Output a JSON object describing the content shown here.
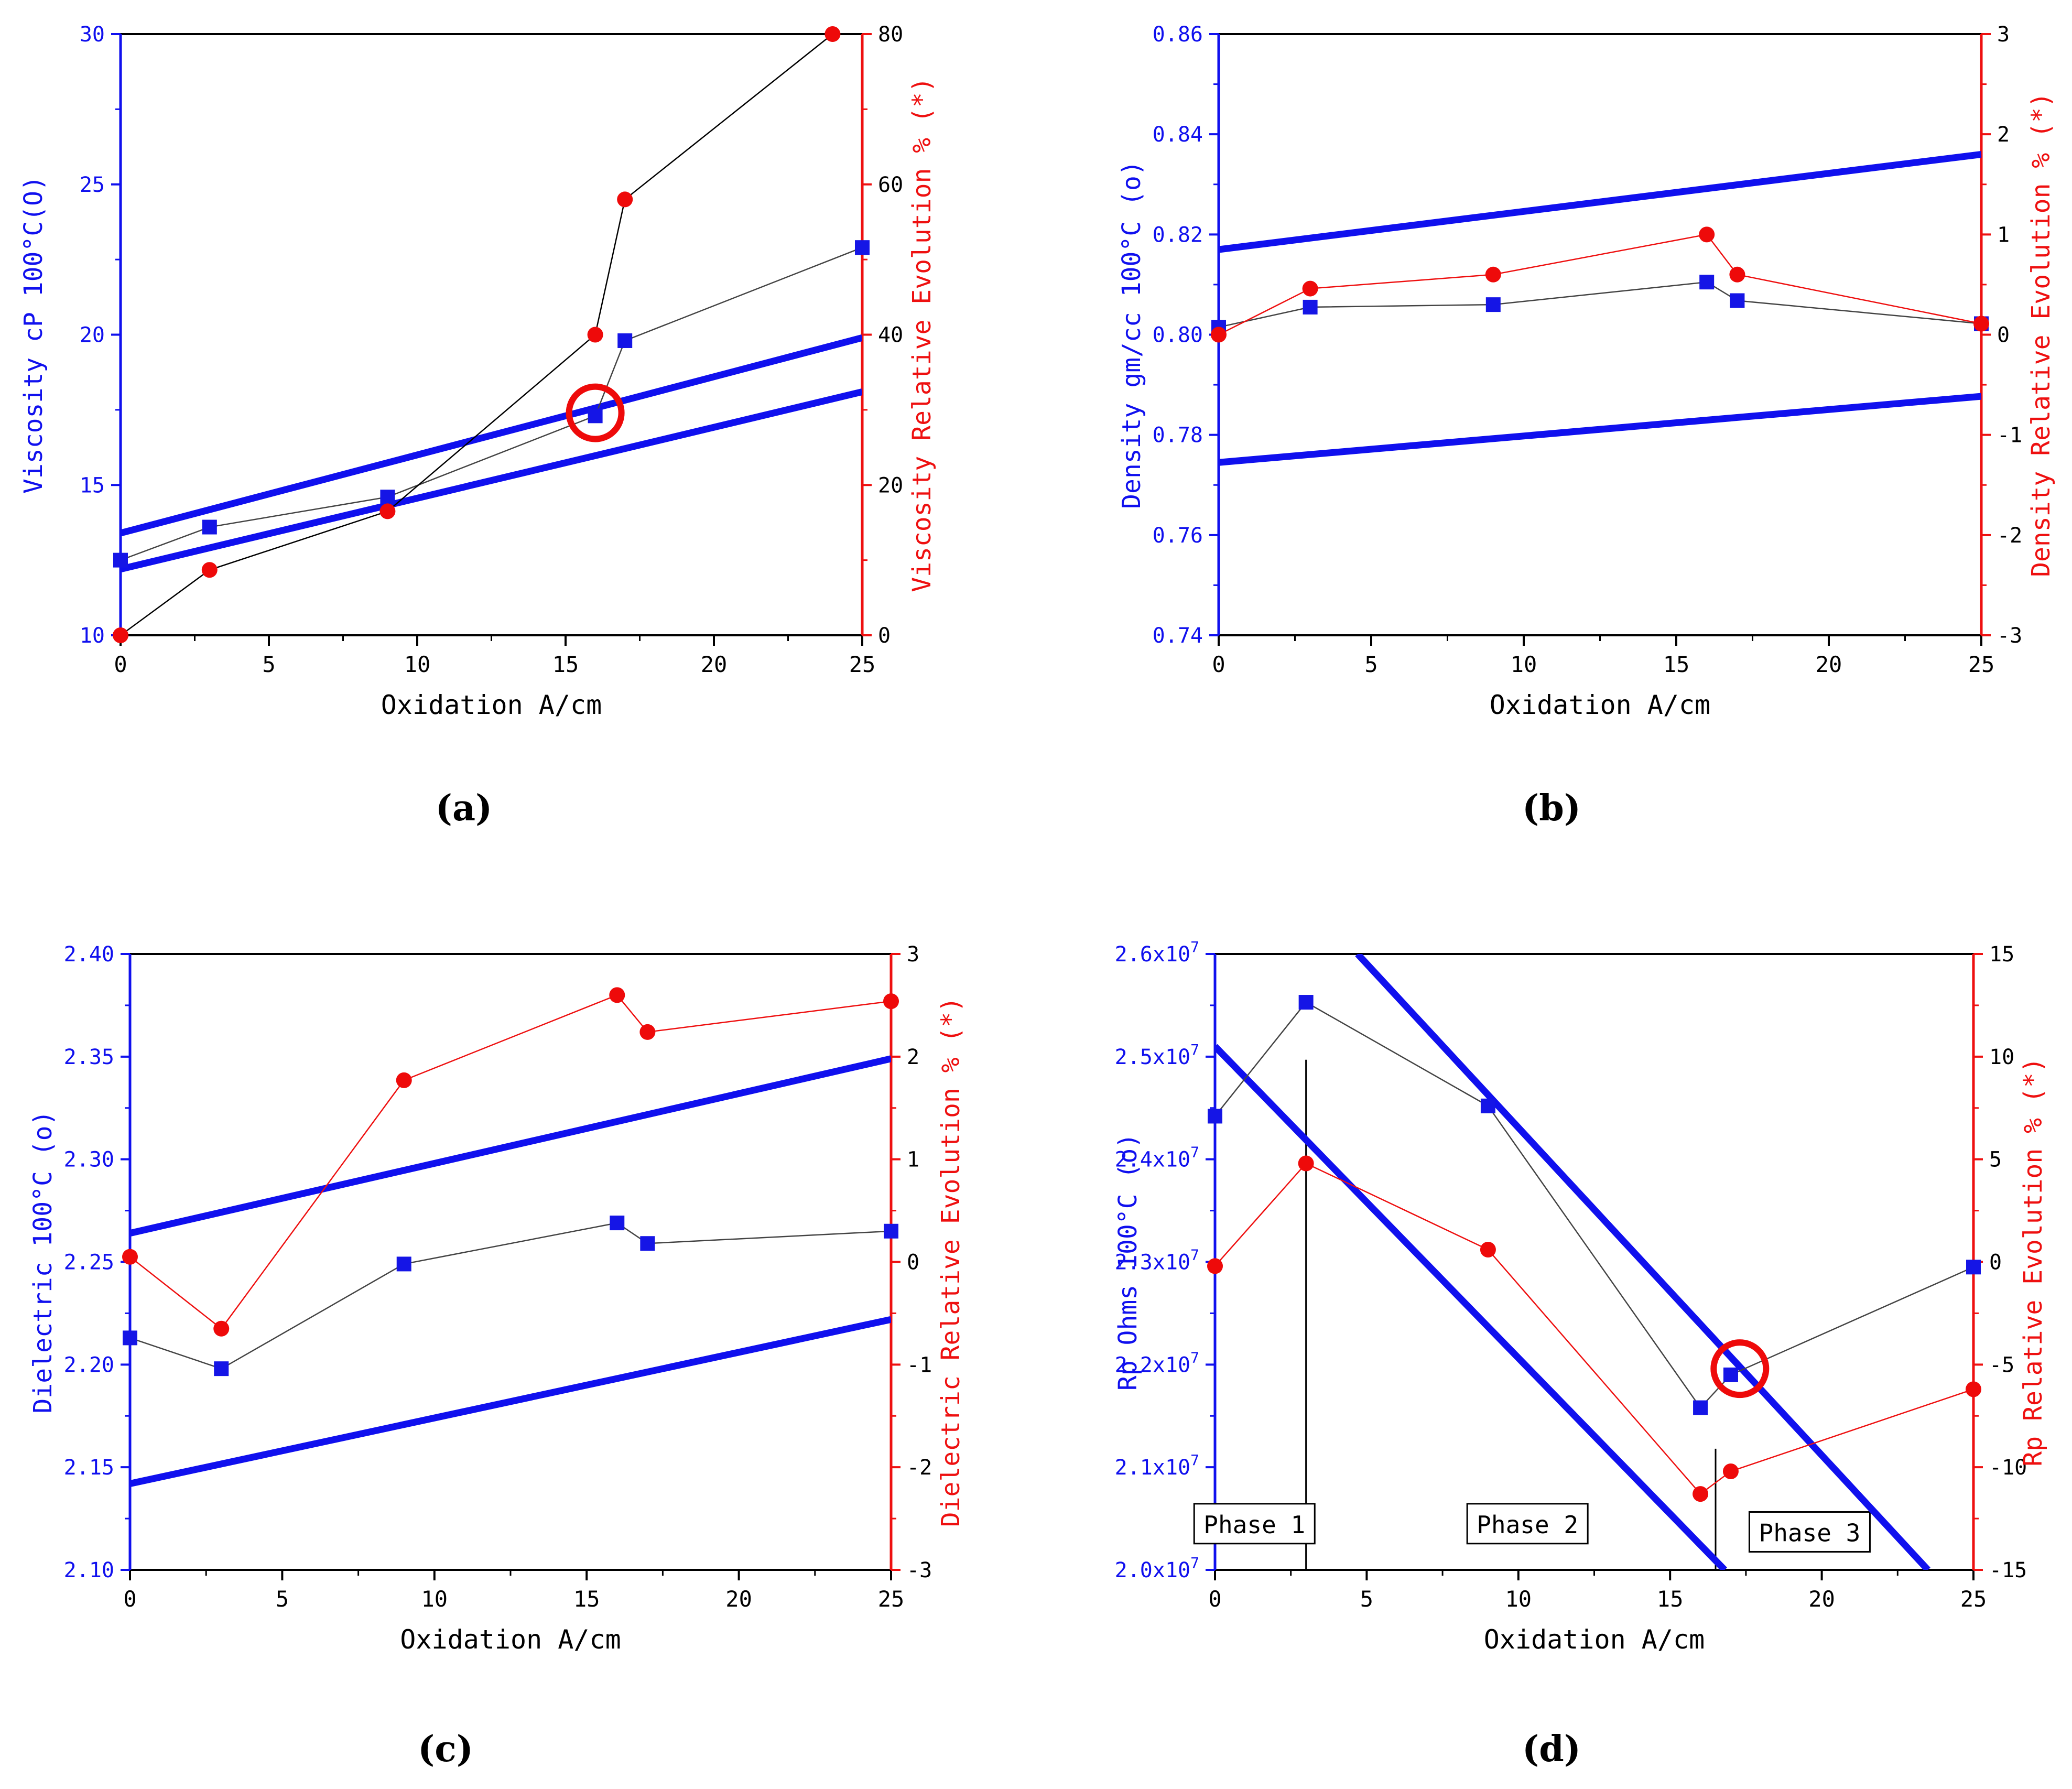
{
  "colors": {
    "left_axis": "#1010ee",
    "right_axis": "#ee1010",
    "square_marker": "#1515e6",
    "circle_marker": "#ee0a0a",
    "trend_line": "#1010ee",
    "highlight": "#ee0a0a",
    "black": "#000000"
  },
  "chart_data": [
    {
      "id": "a",
      "type": "line",
      "panel_label": "(a)",
      "xlabel": "Oxidation A/cm",
      "ylabel_left": "Viscosity cP 100°C(O)",
      "ylabel_right": "Viscosity Relative Evolution % (*)",
      "xlim": [
        0,
        25
      ],
      "ylim_left": [
        10,
        30
      ],
      "ylim_right": [
        0,
        80
      ],
      "xticks": [
        "0",
        "5",
        "10",
        "15",
        "20",
        "25"
      ],
      "yticks_left": [
        "10",
        "15",
        "20",
        "25",
        "30"
      ],
      "yticks_right": [
        "0",
        "20",
        "40",
        "60",
        "80"
      ],
      "series_left": {
        "name": "Viscosity cP 100°C",
        "marker": "square",
        "line": "gray",
        "x": [
          0,
          3,
          9,
          16,
          17,
          25
        ],
        "y": [
          12.5,
          13.6,
          14.6,
          17.3,
          19.8,
          22.9
        ]
      },
      "series_right": {
        "name": "Viscosity Relative Evolution %",
        "marker": "circle",
        "line": "black",
        "x": [
          0,
          3,
          9,
          16,
          17,
          24
        ],
        "y": [
          0,
          8.7,
          16.5,
          40,
          58,
          80
        ]
      },
      "trend_lines": [
        {
          "x": [
            0,
            25
          ],
          "y": [
            13.4,
            19.9
          ]
        },
        {
          "x": [
            0,
            25
          ],
          "y": [
            12.2,
            18.1
          ]
        }
      ],
      "highlight_circle": {
        "x": 16,
        "y": 17.4
      }
    },
    {
      "id": "b",
      "type": "line",
      "panel_label": "(b)",
      "xlabel": "Oxidation A/cm",
      "ylabel_left": "Density gm/cc 100°C (o)",
      "ylabel_right": "Density Relative Evolution % (*)",
      "xlim": [
        0,
        25
      ],
      "ylim_left": [
        0.74,
        0.86
      ],
      "ylim_right": [
        -3,
        3
      ],
      "xticks": [
        "0",
        "5",
        "10",
        "15",
        "20",
        "25"
      ],
      "yticks_left": [
        "0.74",
        "0.76",
        "0.78",
        "0.80",
        "0.82",
        "0.84",
        "0.86"
      ],
      "yticks_right": [
        "-3",
        "-2",
        "-1",
        "0",
        "1",
        "2",
        "3"
      ],
      "series_left": {
        "name": "Density gm/cc 100°C",
        "marker": "square",
        "line": "gray",
        "x": [
          0,
          3,
          9,
          16,
          17,
          25
        ],
        "y": [
          0.8015,
          0.8055,
          0.806,
          0.8105,
          0.8068,
          0.8022
        ]
      },
      "series_right": {
        "name": "Density Relative Evolution %",
        "marker": "circle",
        "line": "red",
        "x": [
          0,
          3,
          9,
          16,
          17,
          25
        ],
        "y": [
          0.0,
          0.46,
          0.6,
          1.0,
          0.6,
          0.11
        ]
      },
      "trend_lines": [
        {
          "x": [
            0,
            25
          ],
          "y": [
            0.817,
            0.836
          ]
        },
        {
          "x": [
            0,
            25
          ],
          "y": [
            0.7745,
            0.7877
          ]
        }
      ],
      "highlight_circle": null
    },
    {
      "id": "c",
      "type": "line",
      "panel_label": "(c)",
      "xlabel": "Oxidation A/cm",
      "ylabel_left": "Dielectric 100°C (o)",
      "ylabel_right": "Dielectric Relative Evolution % (*)",
      "xlim": [
        0,
        25
      ],
      "ylim_left": [
        2.1,
        2.4
      ],
      "ylim_right": [
        -3,
        3
      ],
      "xticks": [
        "0",
        "5",
        "10",
        "15",
        "20",
        "25"
      ],
      "yticks_left": [
        "2.10",
        "2.15",
        "2.20",
        "2.25",
        "2.30",
        "2.35",
        "2.40"
      ],
      "yticks_right": [
        "-3",
        "-2",
        "-1",
        "0",
        "1",
        "2",
        "3"
      ],
      "series_left": {
        "name": "Dielectric 100°C",
        "marker": "square",
        "line": "gray",
        "x": [
          0,
          3,
          9,
          16,
          17,
          25
        ],
        "y": [
          2.213,
          2.198,
          2.249,
          2.269,
          2.259,
          2.265
        ]
      },
      "series_right": {
        "name": "Dielectric Relative Evolution %",
        "marker": "circle",
        "line": "red",
        "x": [
          0,
          3,
          9,
          16,
          17,
          25
        ],
        "y": [
          0.05,
          -0.65,
          1.77,
          2.6,
          2.24,
          2.54
        ]
      },
      "trend_lines": [
        {
          "x": [
            0,
            25
          ],
          "y": [
            2.264,
            2.349
          ]
        },
        {
          "x": [
            0,
            25
          ],
          "y": [
            2.142,
            2.222
          ]
        }
      ],
      "highlight_circle": null
    },
    {
      "id": "d",
      "type": "line",
      "panel_label": "(d)",
      "xlabel": "Oxidation A/cm",
      "ylabel_left": "Rp Ohms 100°C (o)",
      "ylabel_right": "Rp Relative Evolution % (*)",
      "xlim": [
        0,
        25
      ],
      "ylim_left": [
        2.0,
        2.6
      ],
      "ylim_right": [
        -15,
        15
      ],
      "xticks": [
        "0",
        "5",
        "10",
        "15",
        "20",
        "25"
      ],
      "yticks_left": [
        "2.0x10",
        "2.1x10",
        "2.2x10",
        "2.3x10",
        "2.4x10",
        "2.5x10",
        "2.6x10"
      ],
      "ytick_exponent": "7",
      "yticks_right": [
        "-15",
        "-10",
        "-5",
        "0",
        "5",
        "10",
        "15"
      ],
      "series_left": {
        "name": "Rp Ohms 100°C (x10^7)",
        "marker": "square",
        "line": "gray",
        "x": [
          0,
          3,
          9,
          16,
          17,
          25
        ],
        "y": [
          2.442,
          2.553,
          2.452,
          2.158,
          2.19,
          2.295
        ]
      },
      "series_right": {
        "name": "Rp Relative Evolution %",
        "marker": "circle",
        "line": "red",
        "x": [
          0,
          3,
          9,
          16,
          17,
          25
        ],
        "y": [
          -0.2,
          4.8,
          0.6,
          -11.3,
          -10.2,
          -6.2
        ]
      },
      "trend_lines": [
        {
          "x": [
            0,
            16.8
          ],
          "y": [
            2.51,
            2.0
          ]
        },
        {
          "x": [
            4.7,
            23.5
          ],
          "y": [
            2.6,
            2.0
          ]
        }
      ],
      "highlight_circle": {
        "x": 17.3,
        "y": 2.196
      },
      "phase_dividers": [
        {
          "x": 3,
          "y_top": 2.497
        },
        {
          "x": 16.5,
          "y_top": 2.118
        }
      ],
      "phase_labels": [
        {
          "text": "Phase 1",
          "x": 1.3,
          "y": 2.043
        },
        {
          "text": "Phase 2",
          "x": 10.3,
          "y": 2.043
        },
        {
          "text": "Phase 3",
          "x": 19.6,
          "y": 2.035
        }
      ]
    }
  ]
}
